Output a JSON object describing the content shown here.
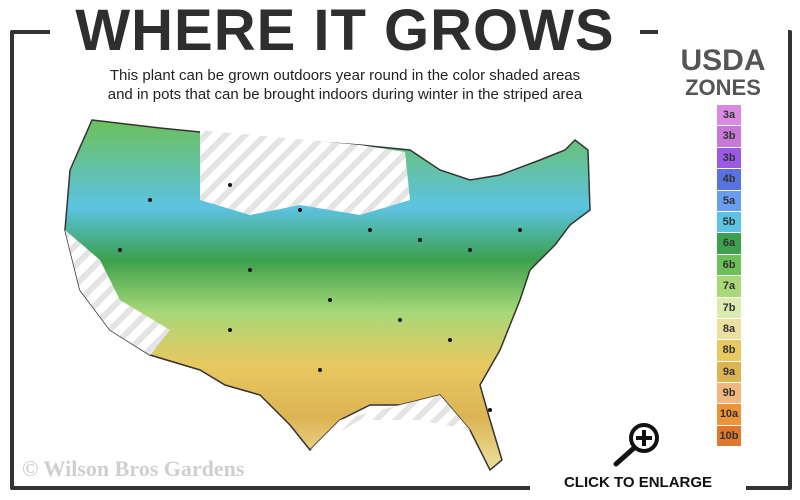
{
  "title": "WHERE IT GROWS",
  "subtitle_line1": "This plant can be grown outdoors year round in the color shaded areas",
  "subtitle_line2": "and in pots that can be brought indoors during winter in the striped area",
  "legend": {
    "title1": "USDA",
    "title2": "ZONES",
    "items": [
      {
        "label": "3a",
        "color": "#d98be0"
      },
      {
        "label": "3b",
        "color": "#c67ad6"
      },
      {
        "label": "3b",
        "color": "#9a5ae6"
      },
      {
        "label": "4b",
        "color": "#5872e0"
      },
      {
        "label": "5a",
        "color": "#6a9cf0"
      },
      {
        "label": "5b",
        "color": "#5cc3e2"
      },
      {
        "label": "6a",
        "color": "#3ca04c"
      },
      {
        "label": "6b",
        "color": "#6cc05a"
      },
      {
        "label": "7a",
        "color": "#a8d878"
      },
      {
        "label": "7b",
        "color": "#dcecb0"
      },
      {
        "label": "8a",
        "color": "#ece0a0"
      },
      {
        "label": "8b",
        "color": "#e8c860"
      },
      {
        "label": "9a",
        "color": "#ddb454"
      },
      {
        "label": "9b",
        "color": "#f0b880"
      },
      {
        "label": "10a",
        "color": "#ec9438"
      },
      {
        "label": "10b",
        "color": "#e07830"
      }
    ]
  },
  "watermark": "© Wilson Bros Gardens",
  "enlarge_label": "CLICK TO ENLARGE",
  "icons": {
    "enlarge": "magnify-plus-icon"
  }
}
